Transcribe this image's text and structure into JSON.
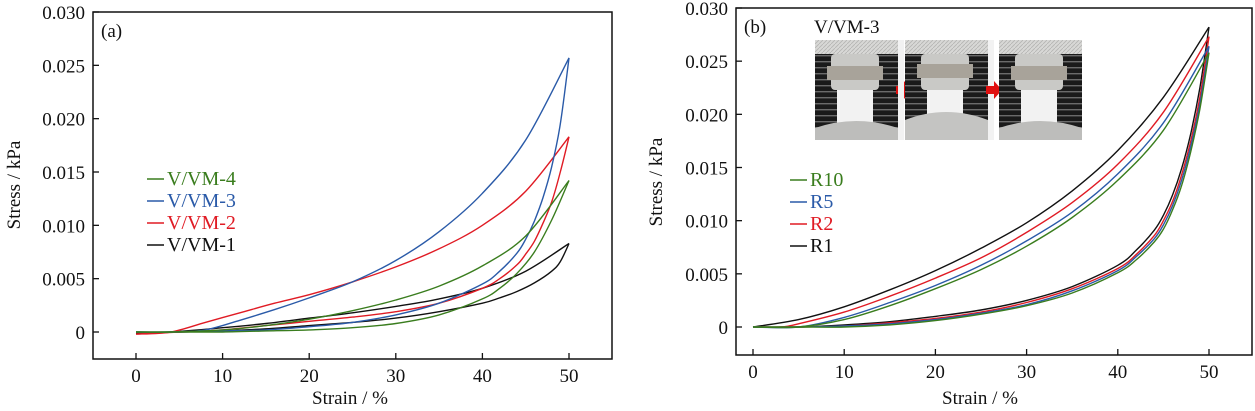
{
  "chart_data": [
    {
      "type": "line",
      "panel_label": "(a)",
      "title": "",
      "xlabel": "Strain / %",
      "ylabel": "Stress / kPa",
      "xlim": [
        -5,
        55
      ],
      "ylim": [
        -0.0025,
        0.03
      ],
      "xticks": [
        0,
        10,
        20,
        30,
        40,
        50
      ],
      "xtick_labels": [
        "0",
        "10",
        "20",
        "30",
        "40",
        "50"
      ],
      "yticks": [
        0,
        0.005,
        0.01,
        0.015,
        0.02,
        0.025,
        0.03
      ],
      "ytick_labels": [
        "0",
        "0.005",
        "0.010",
        "0.015",
        "0.020",
        "0.025",
        "0.030"
      ],
      "grid": false,
      "legend_position": "center-left",
      "series": [
        {
          "name": "V/VM-4",
          "color": "#3a7d1e",
          "loading": {
            "x": [
              0,
              4,
              10,
              15,
              20,
              25,
              30,
              35,
              40,
              45,
              50
            ],
            "y": [
              0,
              0,
              0.0002,
              0.0006,
              0.0012,
              0.002,
              0.003,
              0.0043,
              0.0062,
              0.009,
              0.0142
            ]
          },
          "unloading": {
            "x": [
              50,
              48,
              46,
              44,
              42,
              40,
              35,
              30,
              25,
              20,
              15,
              10,
              5,
              0
            ],
            "y": [
              0.0142,
              0.0105,
              0.0075,
              0.0055,
              0.0041,
              0.0031,
              0.0016,
              0.0008,
              0.0004,
              0.0002,
              0.0001,
              0,
              0,
              0
            ]
          }
        },
        {
          "name": "V/VM-3",
          "color": "#2a5aa8",
          "loading": {
            "x": [
              0,
              4,
              8,
              12,
              16,
              20,
              25,
              30,
              35,
              40,
              45,
              50
            ],
            "y": [
              0,
              0,
              0.0002,
              0.0011,
              0.0021,
              0.0032,
              0.0047,
              0.0067,
              0.0094,
              0.013,
              0.018,
              0.0257
            ]
          },
          "unloading": {
            "x": [
              50,
              49,
              48,
              47,
              46,
              45,
              44,
              42,
              40,
              35,
              30,
              25,
              20,
              15,
              10,
              5,
              0
            ],
            "y": [
              0.0257,
              0.0195,
              0.0155,
              0.0126,
              0.0104,
              0.0087,
              0.0074,
              0.0057,
              0.0045,
              0.0027,
              0.0016,
              0.0009,
              0.0005,
              0.0002,
              0.0001,
              0,
              0
            ]
          }
        },
        {
          "name": "V/VM-2",
          "color": "#e01b24",
          "loading": {
            "x": [
              0,
              4,
              8,
              12,
              16,
              20,
              25,
              30,
              35,
              40,
              45,
              50
            ],
            "y": [
              -0.0002,
              0,
              0.0009,
              0.0018,
              0.0027,
              0.0035,
              0.0047,
              0.0061,
              0.0078,
              0.01,
              0.0132,
              0.0183
            ]
          },
          "unloading": {
            "x": [
              50,
              49,
              48,
              47,
              46,
              45,
              44,
              42,
              40,
              35,
              30,
              25,
              20,
              15,
              10,
              5,
              0
            ],
            "y": [
              0.0183,
              0.015,
              0.0122,
              0.0102,
              0.0085,
              0.0073,
              0.0063,
              0.005,
              0.0041,
              0.0027,
              0.0019,
              0.0014,
              0.001,
              0.0006,
              0.0002,
              0,
              -0.0002
            ]
          }
        },
        {
          "name": "V/VM-1",
          "color": "#111111",
          "loading": {
            "x": [
              0,
              4,
              10,
              15,
              20,
              25,
              30,
              35,
              40,
              45,
              50
            ],
            "y": [
              -0.0001,
              0,
              0.0004,
              0.0008,
              0.0013,
              0.0018,
              0.0024,
              0.0031,
              0.0041,
              0.0057,
              0.0083
            ]
          },
          "unloading": {
            "x": [
              50,
              49,
              48,
              46,
              44,
              42,
              40,
              35,
              30,
              25,
              20,
              15,
              10,
              5,
              0
            ],
            "y": [
              0.0083,
              0.0066,
              0.0057,
              0.0046,
              0.0038,
              0.0032,
              0.0027,
              0.0019,
              0.0013,
              0.0009,
              0.0006,
              0.0003,
              0.0001,
              0,
              -0.0001
            ]
          }
        }
      ]
    },
    {
      "type": "line",
      "panel_label": "(b)",
      "title": "",
      "xlabel": "Strain / %",
      "ylabel": "Stress / kPa",
      "xlim": [
        -3,
        55
      ],
      "ylim": [
        -0.0025,
        0.03
      ],
      "xticks": [
        0,
        10,
        20,
        30,
        40,
        50
      ],
      "xtick_labels": [
        "0",
        "10",
        "20",
        "30",
        "40",
        "50"
      ],
      "yticks": [
        0,
        0.005,
        0.01,
        0.015,
        0.02,
        0.025,
        0.03
      ],
      "ytick_labels": [
        "0",
        "0.005",
        "0.010",
        "0.015",
        "0.020",
        "0.025",
        "0.030"
      ],
      "grid": false,
      "legend_position": "center-left",
      "inset": {
        "title": "V/VM-3",
        "frames": 3,
        "description": "photos of sample compression cycle with red arrows between frames"
      },
      "series": [
        {
          "name": "R10",
          "color": "#3a7d1e",
          "loading": {
            "x": [
              0,
              5,
              10,
              15,
              20,
              25,
              30,
              35,
              40,
              45,
              50
            ],
            "y": [
              0,
              0,
              0.0007,
              0.002,
              0.0036,
              0.0054,
              0.0076,
              0.0103,
              0.0138,
              0.0185,
              0.0258
            ]
          },
          "unloading": {
            "x": [
              50,
              49,
              48,
              47,
              46,
              45,
              44,
              42,
              40,
              35,
              30,
              25,
              20,
              15,
              10,
              5,
              0
            ],
            "y": [
              0.0258,
              0.0205,
              0.0165,
              0.0133,
              0.011,
              0.0092,
              0.008,
              0.0063,
              0.0051,
              0.0032,
              0.002,
              0.0012,
              0.0006,
              0.0002,
              0,
              0,
              0
            ]
          }
        },
        {
          "name": "R5",
          "color": "#2a5aa8",
          "loading": {
            "x": [
              0,
              5,
              10,
              15,
              20,
              25,
              30,
              35,
              40,
              45,
              50
            ],
            "y": [
              0,
              0,
              0.0009,
              0.0023,
              0.0039,
              0.0058,
              0.0081,
              0.0108,
              0.0144,
              0.0192,
              0.0264
            ]
          },
          "unloading": {
            "x": [
              50,
              49,
              48,
              47,
              46,
              45,
              44,
              42,
              40,
              35,
              30,
              25,
              20,
              15,
              10,
              5,
              0
            ],
            "y": [
              0.0264,
              0.021,
              0.017,
              0.0138,
              0.0114,
              0.0096,
              0.0083,
              0.0066,
              0.0053,
              0.0034,
              0.0021,
              0.0013,
              0.0007,
              0.0003,
              0.0001,
              0,
              0
            ]
          }
        },
        {
          "name": "R2",
          "color": "#e01b24",
          "loading": {
            "x": [
              0,
              3,
              5,
              10,
              15,
              20,
              25,
              30,
              35,
              40,
              45,
              50
            ],
            "y": [
              0,
              0,
              0.0003,
              0.0014,
              0.0029,
              0.0046,
              0.0065,
              0.0089,
              0.0117,
              0.0153,
              0.0202,
              0.0273
            ]
          },
          "unloading": {
            "x": [
              50,
              49,
              48,
              47,
              46,
              45,
              44,
              42,
              40,
              35,
              30,
              25,
              20,
              15,
              10,
              5,
              0
            ],
            "y": [
              0.0273,
              0.0216,
              0.0175,
              0.0143,
              0.0118,
              0.01,
              0.0086,
              0.0068,
              0.0055,
              0.0036,
              0.0023,
              0.0014,
              0.0008,
              0.0004,
              0.0001,
              0,
              0
            ]
          }
        },
        {
          "name": "R1",
          "color": "#111111",
          "loading": {
            "x": [
              0,
              5,
              10,
              15,
              20,
              25,
              30,
              35,
              40,
              45,
              50
            ],
            "y": [
              0,
              0.0007,
              0.0019,
              0.0035,
              0.0053,
              0.0074,
              0.0098,
              0.0128,
              0.0166,
              0.0216,
              0.0282
            ]
          },
          "unloading": {
            "x": [
              50,
              49,
              48,
              47,
              46,
              45,
              44,
              42,
              40,
              35,
              30,
              25,
              20,
              15,
              10,
              5,
              0
            ],
            "y": [
              0.0282,
              0.0225,
              0.0182,
              0.0149,
              0.0124,
              0.0105,
              0.0091,
              0.0072,
              0.0058,
              0.0038,
              0.0025,
              0.0016,
              0.001,
              0.0005,
              0.0002,
              0,
              0
            ]
          }
        }
      ]
    }
  ]
}
